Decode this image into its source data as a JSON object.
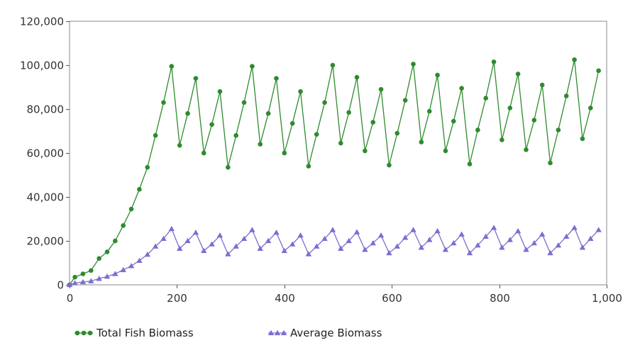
{
  "chart_data": {
    "type": "line",
    "title": "",
    "xlabel": "",
    "ylabel": "",
    "xlim": [
      0,
      1000
    ],
    "ylim": [
      0,
      120000
    ],
    "x_ticks": [
      0,
      200,
      400,
      600,
      800,
      1000
    ],
    "x_tick_labels": [
      "0",
      "200",
      "400",
      "600",
      "800",
      "1,000"
    ],
    "y_ticks": [
      0,
      20000,
      40000,
      60000,
      80000,
      100000,
      120000
    ],
    "y_tick_labels": [
      "0",
      "20,000",
      "40,000",
      "60,000",
      "80,000",
      "100,000",
      "120,000"
    ],
    "grid": true,
    "legend_position": "bottom-left",
    "series": [
      {
        "name": "Total Fish Biomass",
        "color": "#2e8b2e",
        "marker": "circle",
        "x": [
          0,
          10,
          25,
          40,
          55,
          70,
          85,
          100,
          115,
          130,
          145,
          160,
          175,
          190,
          205,
          220,
          235,
          250,
          265,
          280,
          295,
          310,
          325,
          340,
          355,
          370,
          385,
          400,
          415,
          430,
          445,
          460,
          475,
          490,
          505,
          520,
          535,
          550,
          565,
          580,
          595,
          610,
          625,
          640,
          655,
          670,
          685,
          700,
          715,
          730,
          745,
          760,
          775,
          790,
          805,
          820,
          835,
          850,
          865,
          880,
          895,
          910,
          925,
          940,
          955,
          970,
          985
        ],
        "y": [
          0,
          3500,
          5000,
          6500,
          12000,
          15000,
          20000,
          27000,
          34500,
          43500,
          53500,
          68000,
          83000,
          99500,
          63500,
          78000,
          94000,
          60000,
          73000,
          88000,
          53500,
          68000,
          83000,
          99500,
          64000,
          78000,
          94000,
          60000,
          73500,
          88000,
          54000,
          68500,
          83000,
          100000,
          64500,
          78500,
          94500,
          61000,
          74000,
          89000,
          54500,
          69000,
          84000,
          100500,
          65000,
          79000,
          95500,
          61000,
          74500,
          89500,
          55000,
          70500,
          85000,
          101500,
          66000,
          80500,
          96000,
          61500,
          75000,
          91000,
          55500,
          70500,
          86000,
          102500,
          66500,
          80500,
          97500
        ]
      },
      {
        "name": "Average Biomass",
        "color": "#7a6fcf",
        "marker": "triangle",
        "x": [
          0,
          10,
          25,
          40,
          55,
          70,
          85,
          100,
          115,
          130,
          145,
          160,
          175,
          190,
          205,
          220,
          235,
          250,
          265,
          280,
          295,
          310,
          325,
          340,
          355,
          370,
          385,
          400,
          415,
          430,
          445,
          460,
          475,
          490,
          505,
          520,
          535,
          550,
          565,
          580,
          595,
          610,
          625,
          640,
          655,
          670,
          685,
          700,
          715,
          730,
          745,
          760,
          775,
          790,
          805,
          820,
          835,
          850,
          865,
          880,
          895,
          910,
          925,
          940,
          955,
          970,
          985
        ],
        "y": [
          0,
          800,
          1300,
          1700,
          2800,
          3800,
          5000,
          6800,
          8600,
          11000,
          13800,
          17500,
          21000,
          25500,
          16500,
          20000,
          23800,
          15500,
          18500,
          22500,
          14000,
          17500,
          21000,
          25000,
          16500,
          20000,
          23800,
          15500,
          18500,
          22500,
          14000,
          17500,
          21000,
          25000,
          16500,
          20000,
          24000,
          16000,
          19000,
          22500,
          14500,
          17500,
          21500,
          25000,
          17000,
          20500,
          24500,
          16000,
          19000,
          23000,
          14500,
          18000,
          22000,
          26000,
          17000,
          20500,
          24500,
          16000,
          19000,
          23000,
          14500,
          18000,
          22000,
          26000,
          17000,
          21000,
          25000
        ]
      }
    ]
  }
}
